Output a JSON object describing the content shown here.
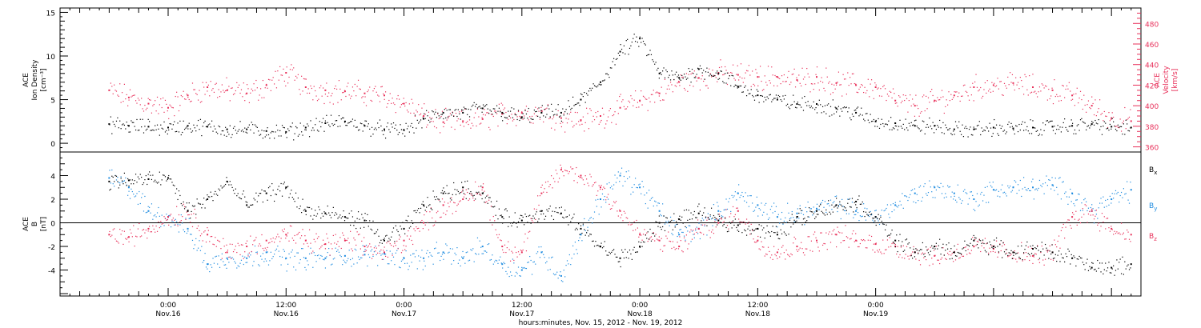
{
  "colors": {
    "black": "#000000",
    "pink": "#e8305a",
    "blue": "#1f8ce0"
  },
  "chart_data": [
    {
      "type": "scatter",
      "panel": "top",
      "left_axis_label": [
        "ACE",
        "Ion Density",
        "[cm⁻³]"
      ],
      "right_axis_label": [
        "ACE",
        "Velocity",
        "[km/s]"
      ],
      "left_ylim": [
        -1,
        15.5
      ],
      "left_yticks": [
        0,
        5,
        10,
        15
      ],
      "right_ylim": [
        355,
        495
      ],
      "right_yticks": [
        360,
        380,
        400,
        420,
        440,
        460,
        480
      ],
      "series": [
        {
          "axis": "left",
          "color": "#000000",
          "x": [
            -6,
            -4,
            -2,
            0,
            2,
            4,
            6,
            8,
            10,
            12,
            14,
            16,
            18,
            20,
            22,
            24,
            26,
            28,
            30,
            32,
            34,
            36,
            38,
            40,
            42,
            44,
            46,
            48,
            50,
            52,
            54,
            56,
            58,
            60,
            62,
            64,
            66,
            68,
            70,
            72,
            74,
            76,
            78,
            80,
            82,
            84,
            86,
            88,
            90,
            92,
            94,
            96,
            98
          ],
          "values": [
            2.2,
            2.0,
            1.9,
            1.8,
            2.0,
            1.9,
            1.6,
            1.6,
            1.4,
            1.3,
            1.8,
            2.3,
            2.5,
            2.0,
            1.6,
            1.5,
            2.8,
            3.5,
            3.5,
            4.0,
            3.5,
            3.0,
            3.5,
            3.5,
            5.0,
            7.0,
            10.5,
            12.0,
            8.0,
            7.5,
            8.5,
            8.0,
            6.5,
            5.5,
            5.0,
            4.5,
            4.5,
            4.0,
            3.5,
            2.5,
            2.3,
            2.0,
            2.0,
            1.6,
            1.6,
            1.8,
            1.7,
            1.8,
            1.9,
            2.0,
            2.2,
            1.9,
            1.8
          ]
        },
        {
          "axis": "right",
          "color": "#e8305a",
          "x": [
            -6,
            -4,
            -2,
            0,
            2,
            4,
            6,
            8,
            10,
            12,
            14,
            16,
            18,
            20,
            22,
            24,
            26,
            28,
            30,
            32,
            34,
            36,
            38,
            40,
            42,
            44,
            46,
            48,
            50,
            52,
            54,
            56,
            58,
            60,
            62,
            64,
            66,
            68,
            70,
            72,
            74,
            76,
            78,
            80,
            82,
            84,
            86,
            88,
            90,
            92,
            94,
            96,
            98
          ],
          "values": [
            415,
            408,
            402,
            398,
            410,
            418,
            415,
            412,
            420,
            432,
            418,
            415,
            414,
            412,
            410,
            402,
            390,
            384,
            385,
            387,
            392,
            393,
            395,
            388,
            386,
            390,
            398,
            405,
            412,
            423,
            427,
            432,
            430,
            428,
            428,
            425,
            428,
            422,
            420,
            418,
            405,
            400,
            405,
            410,
            418,
            420,
            422,
            418,
            415,
            410,
            400,
            388,
            385
          ]
        }
      ]
    },
    {
      "type": "scatter",
      "panel": "bottom",
      "axis_label": [
        "ACE",
        "B",
        "[nT]"
      ],
      "ylim": [
        -6.2,
        6.0
      ],
      "yticks": [
        -4,
        -2,
        0,
        2,
        4
      ],
      "series": [
        {
          "name": "Bx",
          "label_main": "B",
          "label_sub": "x",
          "color": "#000000",
          "x": [
            -6,
            -4,
            -2,
            0,
            2,
            4,
            6,
            8,
            10,
            12,
            14,
            16,
            18,
            20,
            22,
            24,
            26,
            28,
            30,
            32,
            34,
            36,
            38,
            40,
            42,
            44,
            46,
            48,
            50,
            52,
            54,
            56,
            58,
            60,
            62,
            64,
            66,
            68,
            70,
            72,
            74,
            76,
            78,
            80,
            82,
            84,
            86,
            88,
            90,
            92,
            94,
            96,
            98
          ],
          "values": [
            3.5,
            3.6,
            3.7,
            3.8,
            1.0,
            2.0,
            3.5,
            1.5,
            2.5,
            3.0,
            1.0,
            0.8,
            0.5,
            0.2,
            -1.5,
            -0.5,
            1.5,
            2.5,
            3.0,
            2.5,
            0.5,
            0.2,
            1.0,
            0.8,
            -0.5,
            -2.0,
            -3.0,
            -2.0,
            0.0,
            0.3,
            0.8,
            0.2,
            -0.2,
            -0.5,
            -1.0,
            0.5,
            1.0,
            1.5,
            1.8,
            0.5,
            -1.5,
            -2.5,
            -2.0,
            -2.5,
            -1.5,
            -2.0,
            -2.5,
            -2.2,
            -2.5,
            -3.0,
            -3.8,
            -3.8,
            -3.5
          ]
        },
        {
          "name": "By",
          "label_main": "B",
          "label_sub": "y",
          "color": "#1f8ce0",
          "x": [
            -6,
            -4,
            -2,
            0,
            2,
            4,
            6,
            8,
            10,
            12,
            14,
            16,
            18,
            20,
            22,
            24,
            26,
            28,
            30,
            32,
            34,
            36,
            38,
            40,
            42,
            44,
            46,
            48,
            50,
            52,
            54,
            56,
            58,
            60,
            62,
            64,
            66,
            68,
            70,
            72,
            74,
            76,
            78,
            80,
            82,
            84,
            86,
            88,
            90,
            92,
            94,
            96,
            98
          ],
          "values": [
            3.8,
            3.0,
            1.0,
            0.5,
            -0.5,
            -3.5,
            -3.0,
            -3.0,
            -2.5,
            -3.0,
            -3.0,
            -3.0,
            -2.8,
            -2.7,
            -2.6,
            -3.0,
            -3.0,
            -2.5,
            -3.0,
            -2.0,
            -3.5,
            -4.0,
            -2.5,
            -4.5,
            -1.0,
            2.0,
            4.0,
            3.0,
            1.0,
            -1.0,
            -0.5,
            1.0,
            2.5,
            1.5,
            0.5,
            0.8,
            1.2,
            1.5,
            1.0,
            0.5,
            1.5,
            2.5,
            3.0,
            2.5,
            2.0,
            2.8,
            3.0,
            3.0,
            3.2,
            2.5,
            1.0,
            2.0,
            2.8
          ]
        },
        {
          "name": "Bz",
          "label_main": "B",
          "label_sub": "z",
          "color": "#e8305a",
          "x": [
            -6,
            -4,
            -2,
            0,
            2,
            4,
            6,
            8,
            10,
            12,
            14,
            16,
            18,
            20,
            22,
            24,
            26,
            28,
            30,
            32,
            34,
            36,
            38,
            40,
            42,
            44,
            46,
            48,
            50,
            52,
            54,
            56,
            58,
            60,
            62,
            64,
            66,
            68,
            70,
            72,
            74,
            76,
            78,
            80,
            82,
            84,
            86,
            88,
            90,
            92,
            94,
            96,
            98
          ],
          "values": [
            -1.0,
            -1.2,
            -0.5,
            0.5,
            1.0,
            -1.0,
            -2.5,
            -2.0,
            -1.5,
            -1.0,
            -1.5,
            -1.8,
            -1.5,
            -2.0,
            -2.5,
            -1.5,
            0.0,
            1.5,
            2.0,
            3.0,
            -2.0,
            -2.5,
            2.5,
            4.5,
            4.0,
            3.0,
            1.0,
            -1.0,
            -1.5,
            -2.0,
            -0.5,
            0.0,
            1.0,
            -1.5,
            -2.5,
            -2.0,
            -1.5,
            -1.0,
            -1.5,
            -1.8,
            -2.0,
            -2.5,
            -2.8,
            -2.5,
            -2.0,
            -2.2,
            -2.5,
            -2.8,
            -2.5,
            0.5,
            1.0,
            -0.5,
            -1.0
          ]
        }
      ]
    }
  ],
  "x_axis": {
    "xlim": [
      -11,
      99
    ],
    "tick_labels": [
      {
        "x": 0,
        "time": "0:00",
        "date": "Nov.16"
      },
      {
        "x": 12,
        "time": "12:00",
        "date": "Nov.16"
      },
      {
        "x": 24,
        "time": "0:00",
        "date": "Nov.17"
      },
      {
        "x": 36,
        "time": "12:00",
        "date": "Nov.17"
      },
      {
        "x": 48,
        "time": "0:00",
        "date": "Nov.18"
      },
      {
        "x": 60,
        "time": "12:00",
        "date": "Nov.18"
      },
      {
        "x": 72,
        "time": "0:00",
        "date": "Nov.19"
      }
    ],
    "title": "hours:minutes, Nov. 15, 2012 - Nov. 19, 2012"
  }
}
